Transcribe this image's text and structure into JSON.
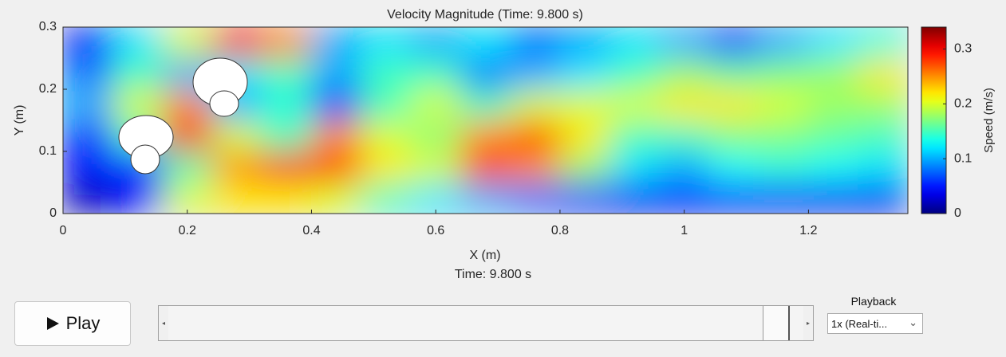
{
  "chart_data": {
    "type": "heatmap",
    "title": "Velocity Magnitude (Time: 9.800 s)",
    "xlabel": "X (m)",
    "ylabel": "Y (m)",
    "colorbar_label": "Speed (m/s)",
    "colormap": "jet",
    "x": [
      0.04,
      0.12,
      0.2,
      0.28,
      0.36,
      0.44,
      0.52,
      0.6,
      0.68,
      0.76,
      0.84,
      0.92,
      1.0,
      1.08,
      1.16,
      1.24,
      1.32
    ],
    "y": [
      0.025,
      0.075,
      0.125,
      0.175,
      0.225,
      0.275
    ],
    "z": [
      [
        0.02,
        0.05,
        0.2,
        0.22,
        0.22,
        0.2,
        0.15,
        0.12,
        0.1,
        0.08,
        0.06,
        0.04,
        0.05,
        0.05,
        0.05,
        0.04,
        0.04
      ],
      [
        0.05,
        0.05,
        0.15,
        0.25,
        0.3,
        0.28,
        0.22,
        0.2,
        0.28,
        0.25,
        0.18,
        0.12,
        0.1,
        0.13,
        0.14,
        0.13,
        0.12
      ],
      [
        0.05,
        0.15,
        0.3,
        0.2,
        0.15,
        0.25,
        0.2,
        0.17,
        0.25,
        0.27,
        0.22,
        0.15,
        0.15,
        0.17,
        0.17,
        0.16,
        0.15
      ],
      [
        0.1,
        0.2,
        0.25,
        0.1,
        0.14,
        0.05,
        0.15,
        0.2,
        0.15,
        0.2,
        0.2,
        0.2,
        0.22,
        0.22,
        0.2,
        0.18,
        0.18
      ],
      [
        0.08,
        0.15,
        0.1,
        0.12,
        0.15,
        0.1,
        0.15,
        0.15,
        0.08,
        0.1,
        0.12,
        0.15,
        0.18,
        0.16,
        0.17,
        0.18,
        0.22
      ],
      [
        0.05,
        0.12,
        0.2,
        0.3,
        0.25,
        0.1,
        0.12,
        0.1,
        0.12,
        0.08,
        0.1,
        0.12,
        0.1,
        0.06,
        0.1,
        0.12,
        0.14
      ]
    ],
    "xlim": [
      0,
      1.36
    ],
    "ylim": [
      0,
      0.3
    ],
    "clim": [
      0,
      0.34
    ],
    "xticks": [
      0,
      0.2,
      0.4,
      0.6,
      0.8,
      1,
      1.2
    ],
    "yticks": [
      0,
      0.1,
      0.2,
      0.3
    ],
    "cticks": [
      0,
      0.1,
      0.2,
      0.3
    ]
  },
  "time_label": "Time: 9.800 s",
  "controls": {
    "play_button": "Play",
    "speed_label": "Playback",
    "speed_select": "1x (Real-ti..."
  }
}
